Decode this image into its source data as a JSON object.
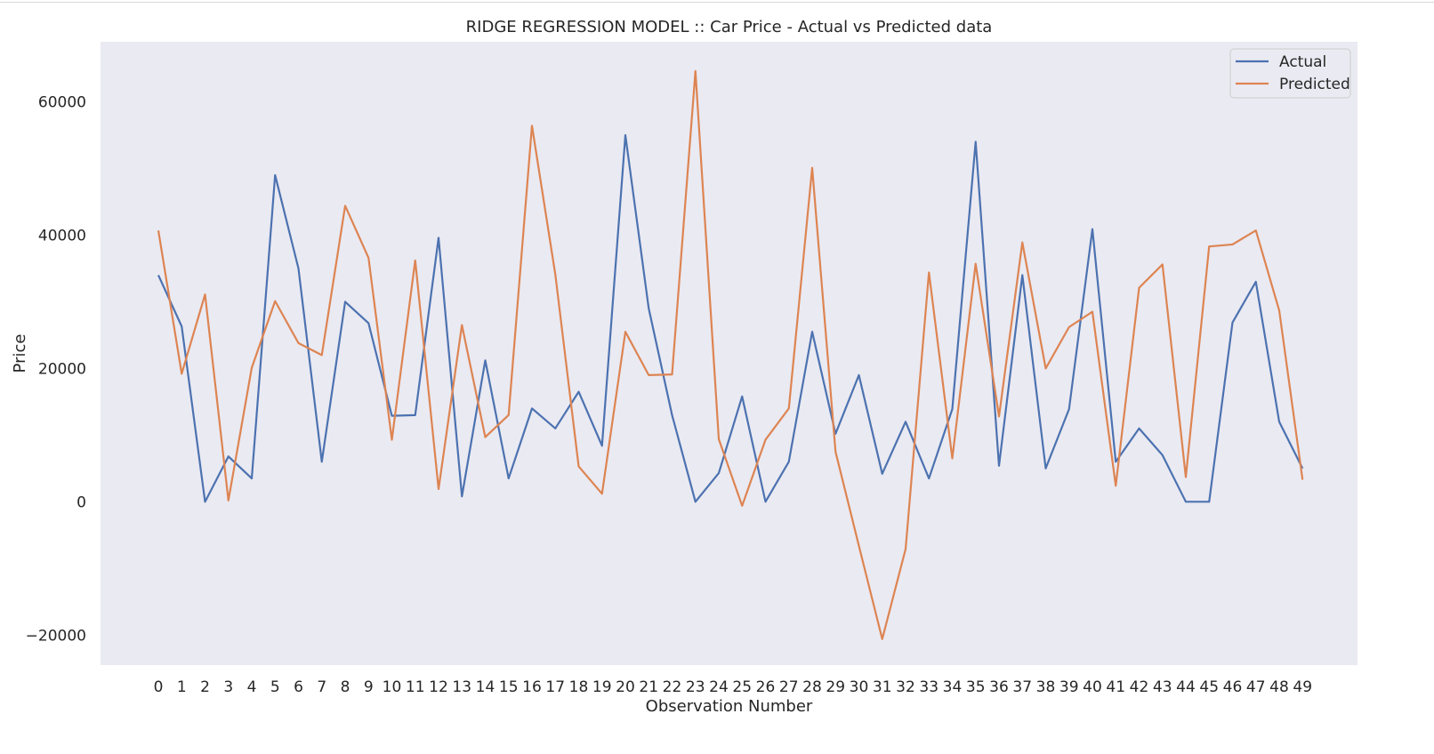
{
  "chart_data": {
    "type": "line",
    "title": "RIDGE REGRESSION MODEL :: Car Price - Actual vs Predicted data",
    "xlabel": "Observation Number",
    "ylabel": "Price",
    "x": [
      0,
      1,
      2,
      3,
      4,
      5,
      6,
      7,
      8,
      9,
      10,
      11,
      12,
      13,
      14,
      15,
      16,
      17,
      18,
      19,
      20,
      21,
      22,
      23,
      24,
      25,
      26,
      27,
      28,
      29,
      30,
      31,
      32,
      33,
      34,
      35,
      36,
      37,
      38,
      39,
      40,
      41,
      42,
      43,
      44,
      45,
      46,
      47,
      48,
      49
    ],
    "yticks": [
      -20000,
      0,
      20000,
      40000,
      60000
    ],
    "ylim": [
      -24500,
      69000
    ],
    "grid": false,
    "legend_position": "top-right",
    "series": [
      {
        "name": "Actual",
        "color": "#4c72b0",
        "values": [
          34000,
          26300,
          0,
          6800,
          3500,
          49000,
          35000,
          6000,
          30000,
          26800,
          12900,
          13000,
          39600,
          800,
          21200,
          3500,
          14000,
          11000,
          16500,
          8400,
          55000,
          29000,
          13000,
          0,
          4300,
          15800,
          0,
          6000,
          25500,
          10200,
          19000,
          4200,
          12000,
          3500,
          13900,
          54000,
          5400,
          34000,
          5000,
          13900,
          40900,
          6000,
          11000,
          7000,
          0,
          0,
          26900,
          33000,
          12000,
          5000
        ]
      },
      {
        "name": "Predicted",
        "color": "#dd8452",
        "values": [
          40700,
          19200,
          31100,
          200,
          20100,
          30100,
          23800,
          22000,
          44400,
          36600,
          9300,
          36200,
          1900,
          26500,
          9700,
          13000,
          56400,
          34100,
          5300,
          1200,
          25500,
          19000,
          19100,
          64600,
          9400,
          -600,
          9300,
          14000,
          50100,
          7500,
          -6600,
          -20600,
          -7100,
          34400,
          6500,
          35700,
          12800,
          38900,
          20000,
          26200,
          28500,
          2400,
          32100,
          35600,
          3700,
          38300,
          38600,
          40700,
          28700,
          3300
        ]
      }
    ]
  }
}
